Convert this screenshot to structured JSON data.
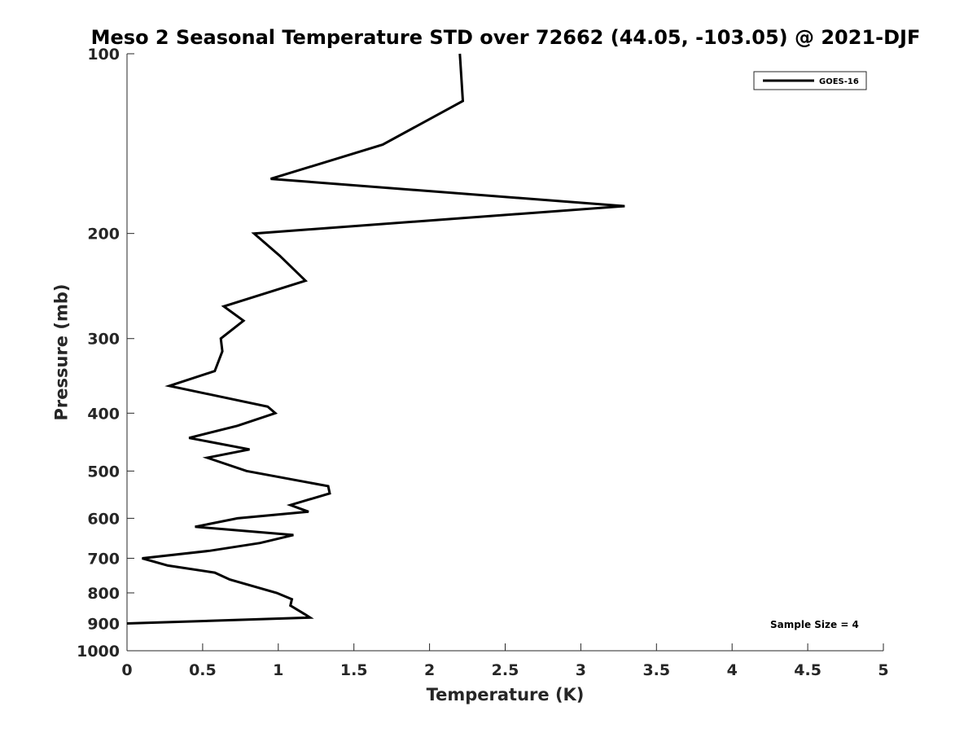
{
  "chart_data": {
    "type": "line",
    "title": "Meso 2 Seasonal Temperature STD over 72662 (44.05, -103.05) @ 2021-DJF",
    "xlabel": "Temperature (K)",
    "ylabel": "Pressure (mb)",
    "xlim": [
      0,
      5
    ],
    "ylim": [
      1000,
      100
    ],
    "y_scale": "log",
    "y_reversed": true,
    "grid": false,
    "x_ticks": [
      0,
      0.5,
      1,
      1.5,
      2,
      2.5,
      3,
      3.5,
      4,
      4.5,
      5
    ],
    "x_tick_labels": [
      "0",
      "0.5",
      "1",
      "1.5",
      "2",
      "2.5",
      "3",
      "3.5",
      "4",
      "4.5",
      "5"
    ],
    "y_ticks": [
      100,
      200,
      300,
      400,
      500,
      600,
      700,
      800,
      900,
      1000
    ],
    "y_tick_labels": [
      "100",
      "200",
      "300",
      "400",
      "500",
      "600",
      "700",
      "800",
      "900",
      "1000"
    ],
    "legend": {
      "placement": "top-right",
      "entries": [
        "GOES-16"
      ]
    },
    "annotation": "Sample Size = 4",
    "series": [
      {
        "name": "GOES-16",
        "color": "#000000",
        "points": [
          {
            "x": 2.2,
            "y": 100
          },
          {
            "x": 2.22,
            "y": 120
          },
          {
            "x": 1.69,
            "y": 142
          },
          {
            "x": 0.95,
            "y": 162
          },
          {
            "x": 3.29,
            "y": 180
          },
          {
            "x": 0.84,
            "y": 200
          },
          {
            "x": 1.01,
            "y": 218
          },
          {
            "x": 1.18,
            "y": 240
          },
          {
            "x": 0.64,
            "y": 265
          },
          {
            "x": 0.77,
            "y": 280
          },
          {
            "x": 0.62,
            "y": 300
          },
          {
            "x": 0.63,
            "y": 315
          },
          {
            "x": 0.58,
            "y": 340
          },
          {
            "x": 0.28,
            "y": 360
          },
          {
            "x": 0.93,
            "y": 390
          },
          {
            "x": 0.98,
            "y": 400
          },
          {
            "x": 0.73,
            "y": 420
          },
          {
            "x": 0.41,
            "y": 440
          },
          {
            "x": 0.81,
            "y": 460
          },
          {
            "x": 0.53,
            "y": 475
          },
          {
            "x": 0.79,
            "y": 500
          },
          {
            "x": 1.33,
            "y": 530
          },
          {
            "x": 1.34,
            "y": 545
          },
          {
            "x": 1.08,
            "y": 570
          },
          {
            "x": 1.2,
            "y": 585
          },
          {
            "x": 0.73,
            "y": 600
          },
          {
            "x": 0.45,
            "y": 620
          },
          {
            "x": 1.1,
            "y": 640
          },
          {
            "x": 0.88,
            "y": 660
          },
          {
            "x": 0.55,
            "y": 680
          },
          {
            "x": 0.1,
            "y": 700
          },
          {
            "x": 0.27,
            "y": 720
          },
          {
            "x": 0.58,
            "y": 740
          },
          {
            "x": 0.68,
            "y": 760
          },
          {
            "x": 0.99,
            "y": 800
          },
          {
            "x": 1.09,
            "y": 820
          },
          {
            "x": 1.08,
            "y": 840
          },
          {
            "x": 1.18,
            "y": 870
          },
          {
            "x": 1.21,
            "y": 880
          },
          {
            "x": 0.0,
            "y": 900
          }
        ]
      }
    ]
  }
}
